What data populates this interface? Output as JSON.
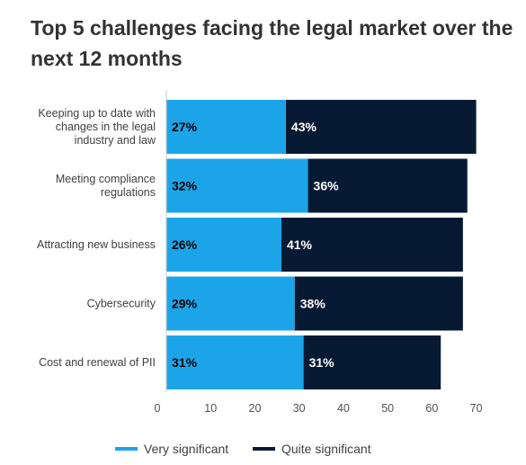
{
  "chart_data": {
    "type": "bar",
    "orientation": "horizontal",
    "stacked": true,
    "title": "Top 5 challenges facing the legal market over the next 12 months",
    "categories": [
      "Keeping up to date with changes in the legal industry and law",
      "Meeting compliance regulations",
      "Attracting new business",
      "Cybersecurity",
      "Cost and renewal of PII"
    ],
    "series": [
      {
        "name": "Very significant",
        "values": [
          27,
          32,
          26,
          29,
          31
        ],
        "color": "#1ba5e8",
        "label_color": "#000000"
      },
      {
        "name": "Quite significant",
        "values": [
          43,
          36,
          41,
          38,
          31
        ],
        "color": "#071a33",
        "label_color": "#ffffff"
      }
    ],
    "data_labels": [
      [
        "27%",
        "32%",
        "26%",
        "29%",
        "31%"
      ],
      [
        "43%",
        "36%",
        "41%",
        "38%",
        "31%"
      ]
    ],
    "xlim": [
      0,
      72
    ],
    "xticks": [
      0,
      10,
      20,
      30,
      40,
      50,
      60,
      70
    ],
    "grid": false,
    "legend_position": "bottom"
  }
}
